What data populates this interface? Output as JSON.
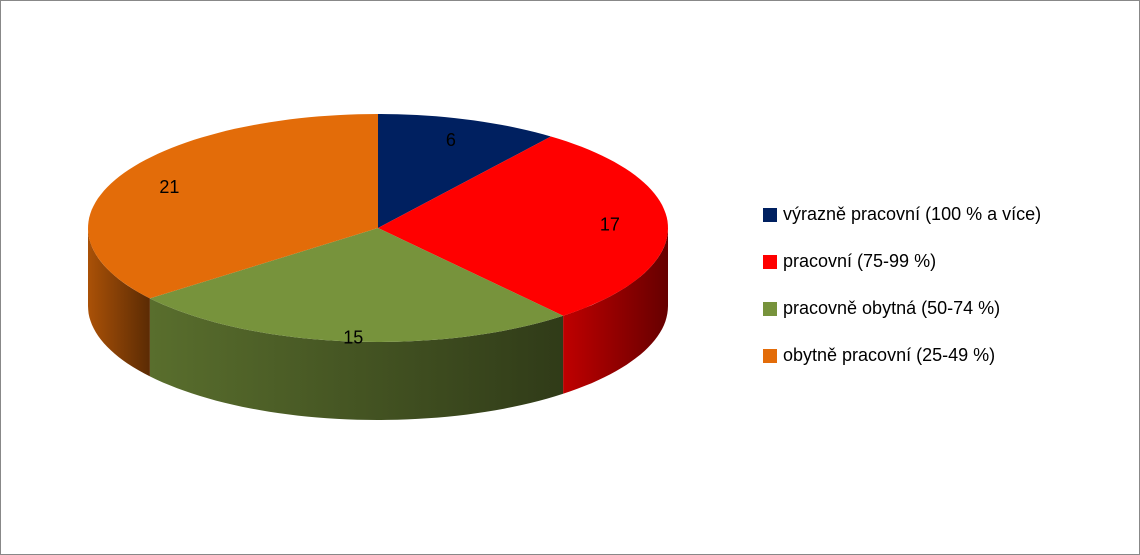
{
  "chart_data": {
    "type": "pie",
    "categories": [
      "výrazně pracovní (100 % a více)",
      "pracovní (75-99 %)",
      "pracovně obytná (50-74 %)",
      "obytně pracovní (25-49 %)"
    ],
    "values": [
      6,
      17,
      15,
      21
    ],
    "colors": [
      "#002060",
      "#ff0000",
      "#77933c",
      "#e36c09"
    ],
    "legend": "right"
  }
}
